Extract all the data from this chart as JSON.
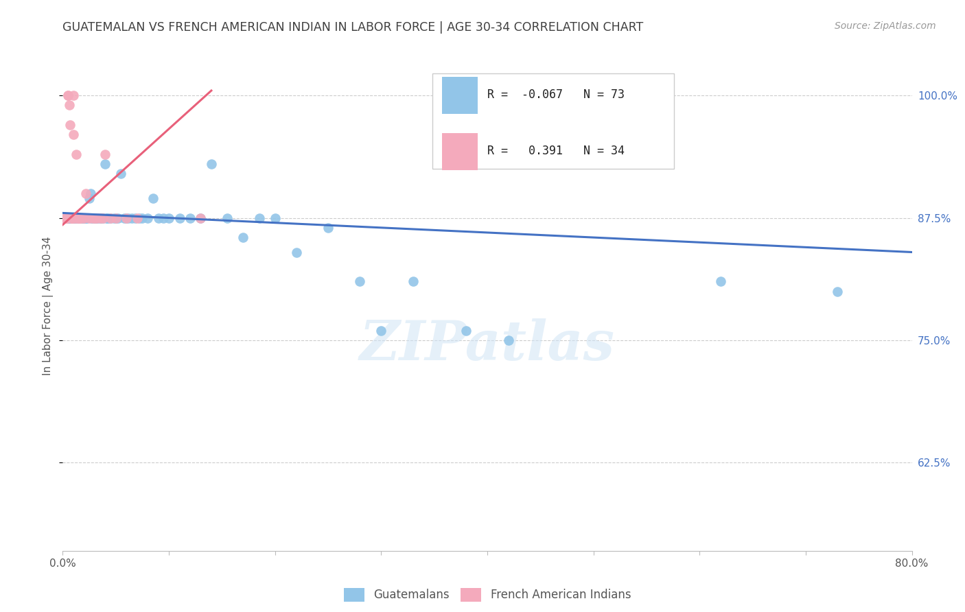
{
  "title": "GUATEMALAN VS FRENCH AMERICAN INDIAN IN LABOR FORCE | AGE 30-34 CORRELATION CHART",
  "source": "Source: ZipAtlas.com",
  "ylabel": "In Labor Force | Age 30-34",
  "x_min": 0.0,
  "x_max": 0.8,
  "y_min": 0.535,
  "y_max": 1.035,
  "y_ticks": [
    0.625,
    0.75,
    0.875,
    1.0
  ],
  "y_tick_labels": [
    "62.5%",
    "75.0%",
    "87.5%",
    "100.0%"
  ],
  "legend_labels": [
    "Guatemalans",
    "French American Indians"
  ],
  "r_blue": -0.067,
  "n_blue": 73,
  "r_pink": 0.391,
  "n_pink": 34,
  "blue_color": "#92C5E8",
  "pink_color": "#F4AABC",
  "blue_line_color": "#4472C4",
  "pink_line_color": "#E8607A",
  "watermark": "ZIPatlas",
  "blue_scatter_x": [
    0.003,
    0.004,
    0.005,
    0.005,
    0.006,
    0.007,
    0.008,
    0.008,
    0.01,
    0.01,
    0.011,
    0.012,
    0.013,
    0.015,
    0.015,
    0.016,
    0.018,
    0.019,
    0.02,
    0.02,
    0.021,
    0.022,
    0.022,
    0.023,
    0.025,
    0.026,
    0.027,
    0.028,
    0.03,
    0.031,
    0.032,
    0.033,
    0.035,
    0.036,
    0.038,
    0.04,
    0.041,
    0.042,
    0.043,
    0.045,
    0.048,
    0.05,
    0.052,
    0.055,
    0.058,
    0.06,
    0.062,
    0.065,
    0.068,
    0.072,
    0.075,
    0.08,
    0.085,
    0.09,
    0.095,
    0.1,
    0.11,
    0.12,
    0.13,
    0.14,
    0.155,
    0.17,
    0.185,
    0.2,
    0.22,
    0.25,
    0.28,
    0.3,
    0.33,
    0.38,
    0.42,
    0.62,
    0.73
  ],
  "blue_scatter_y": [
    0.875,
    0.875,
    0.875,
    0.875,
    0.875,
    0.875,
    0.875,
    0.875,
    0.875,
    0.875,
    0.875,
    0.875,
    0.875,
    0.875,
    0.875,
    0.875,
    0.875,
    0.875,
    0.875,
    0.875,
    0.875,
    0.875,
    0.875,
    0.875,
    0.895,
    0.9,
    0.875,
    0.875,
    0.875,
    0.875,
    0.875,
    0.875,
    0.875,
    0.875,
    0.875,
    0.93,
    0.875,
    0.875,
    0.875,
    0.875,
    0.875,
    0.875,
    0.875,
    0.92,
    0.875,
    0.875,
    0.875,
    0.875,
    0.875,
    0.875,
    0.875,
    0.875,
    0.895,
    0.875,
    0.875,
    0.875,
    0.875,
    0.875,
    0.875,
    0.93,
    0.875,
    0.855,
    0.875,
    0.875,
    0.84,
    0.865,
    0.81,
    0.76,
    0.81,
    0.76,
    0.75,
    0.81,
    0.8
  ],
  "pink_scatter_x": [
    0.002,
    0.003,
    0.003,
    0.004,
    0.005,
    0.005,
    0.006,
    0.007,
    0.008,
    0.008,
    0.009,
    0.01,
    0.01,
    0.01,
    0.012,
    0.013,
    0.014,
    0.015,
    0.016,
    0.017,
    0.02,
    0.022,
    0.025,
    0.028,
    0.03,
    0.032,
    0.035,
    0.038,
    0.04,
    0.045,
    0.05,
    0.06,
    0.07,
    0.13
  ],
  "pink_scatter_y": [
    0.875,
    0.875,
    0.875,
    0.875,
    1.0,
    1.0,
    0.99,
    0.97,
    0.875,
    0.875,
    0.875,
    0.875,
    0.96,
    1.0,
    0.875,
    0.94,
    0.875,
    0.875,
    0.875,
    0.875,
    0.875,
    0.9,
    0.875,
    0.875,
    0.875,
    0.875,
    0.875,
    0.875,
    0.94,
    0.875,
    0.875,
    0.875,
    0.875,
    0.875
  ],
  "pink_trendline_x0": 0.0,
  "pink_trendline_y0": 0.868,
  "pink_trendline_x1": 0.14,
  "pink_trendline_y1": 1.005,
  "blue_trendline_x0": 0.0,
  "blue_trendline_y0": 0.88,
  "blue_trendline_x1": 0.8,
  "blue_trendline_y1": 0.84
}
